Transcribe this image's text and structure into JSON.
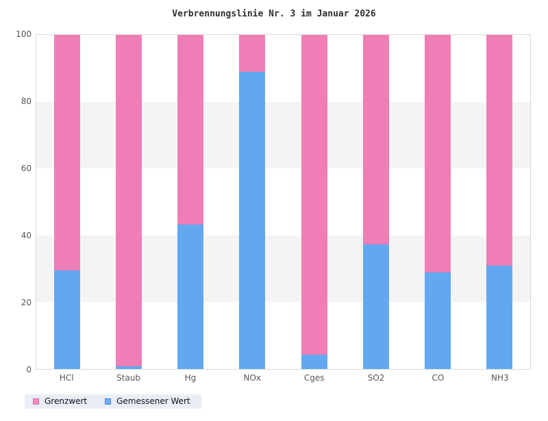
{
  "chart_data": {
    "type": "bar",
    "stacked": true,
    "stack_total": 100,
    "title": "Verbrennungslinie Nr. 3 im Januar 2026",
    "categories": [
      "HCl",
      "Staub",
      "Hg",
      "NOx",
      "Cges",
      "SO2",
      "CO",
      "NH3"
    ],
    "series": [
      {
        "name": "Grenzwert",
        "color": "#f07eb6",
        "swatch_fill": "#f48fc0",
        "swatch_border": "#dd66a2",
        "values": [
          70.5,
          99.1,
          56.8,
          11.0,
          95.7,
          62.7,
          71.2,
          69.0
        ]
      },
      {
        "name": "Gemessener Wert",
        "color": "#61a8f0",
        "swatch_fill": "#6fadf2",
        "swatch_border": "#4d86c8",
        "values": [
          29.5,
          0.9,
          43.2,
          89.0,
          4.3,
          37.3,
          28.8,
          31.0
        ]
      }
    ],
    "ylim": [
      0,
      100
    ],
    "yticks": [
      0,
      20,
      40,
      60,
      80,
      100
    ],
    "grid": "alternating-bands",
    "band_colors": [
      "#ffffff",
      "#f4f4f4"
    ],
    "plot_border_color": "#d9d9d9",
    "axis_label_color": "#555555",
    "title_color": "#2e2e2e",
    "legend_background": "#e9eef6",
    "legend_position": "bottom-left"
  }
}
